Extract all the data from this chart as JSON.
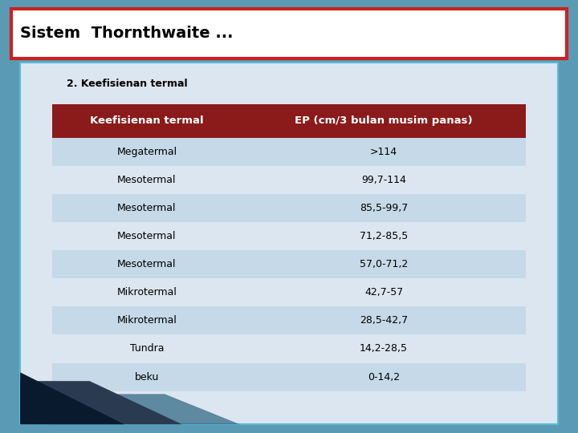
{
  "title": "Sistem  Thornthwaite ...",
  "subtitle": "2. Keefisienan termal",
  "header": [
    "Keefisienan termal",
    "EP (cm/3 bulan musim panas)"
  ],
  "rows": [
    [
      "Megatermal",
      ">114"
    ],
    [
      "Mesotermal",
      "99,7-114"
    ],
    [
      "Mesotermal",
      "85,5-99,7"
    ],
    [
      "Mesotermal",
      "71,2-85,5"
    ],
    [
      "Mesotermal",
      "57,0-71,2"
    ],
    [
      "Mikrotermal",
      "42,7-57"
    ],
    [
      "Mikrotermal",
      "28,5-42,7"
    ],
    [
      "Tundra",
      "14,2-28,5"
    ],
    [
      "beku",
      "0-14,2"
    ]
  ],
  "title_bg": "#ffffff",
  "title_border": "#cc2020",
  "title_text_color": "#000000",
  "outer_bg": "#5b9ab5",
  "inner_bg": "#dce6f0",
  "inner_border": "#5bbcd4",
  "header_bg": "#8b1a1a",
  "header_text_color": "#ffffff",
  "row_even_bg": "#c5d9e8",
  "row_odd_bg": "#dce6f0",
  "row_text_color": "#000000",
  "subtitle_color": "#000000",
  "stripe1_color": "#0a1a2e",
  "stripe2_color": "#1a4060",
  "stripe3_color": "#2a6080"
}
